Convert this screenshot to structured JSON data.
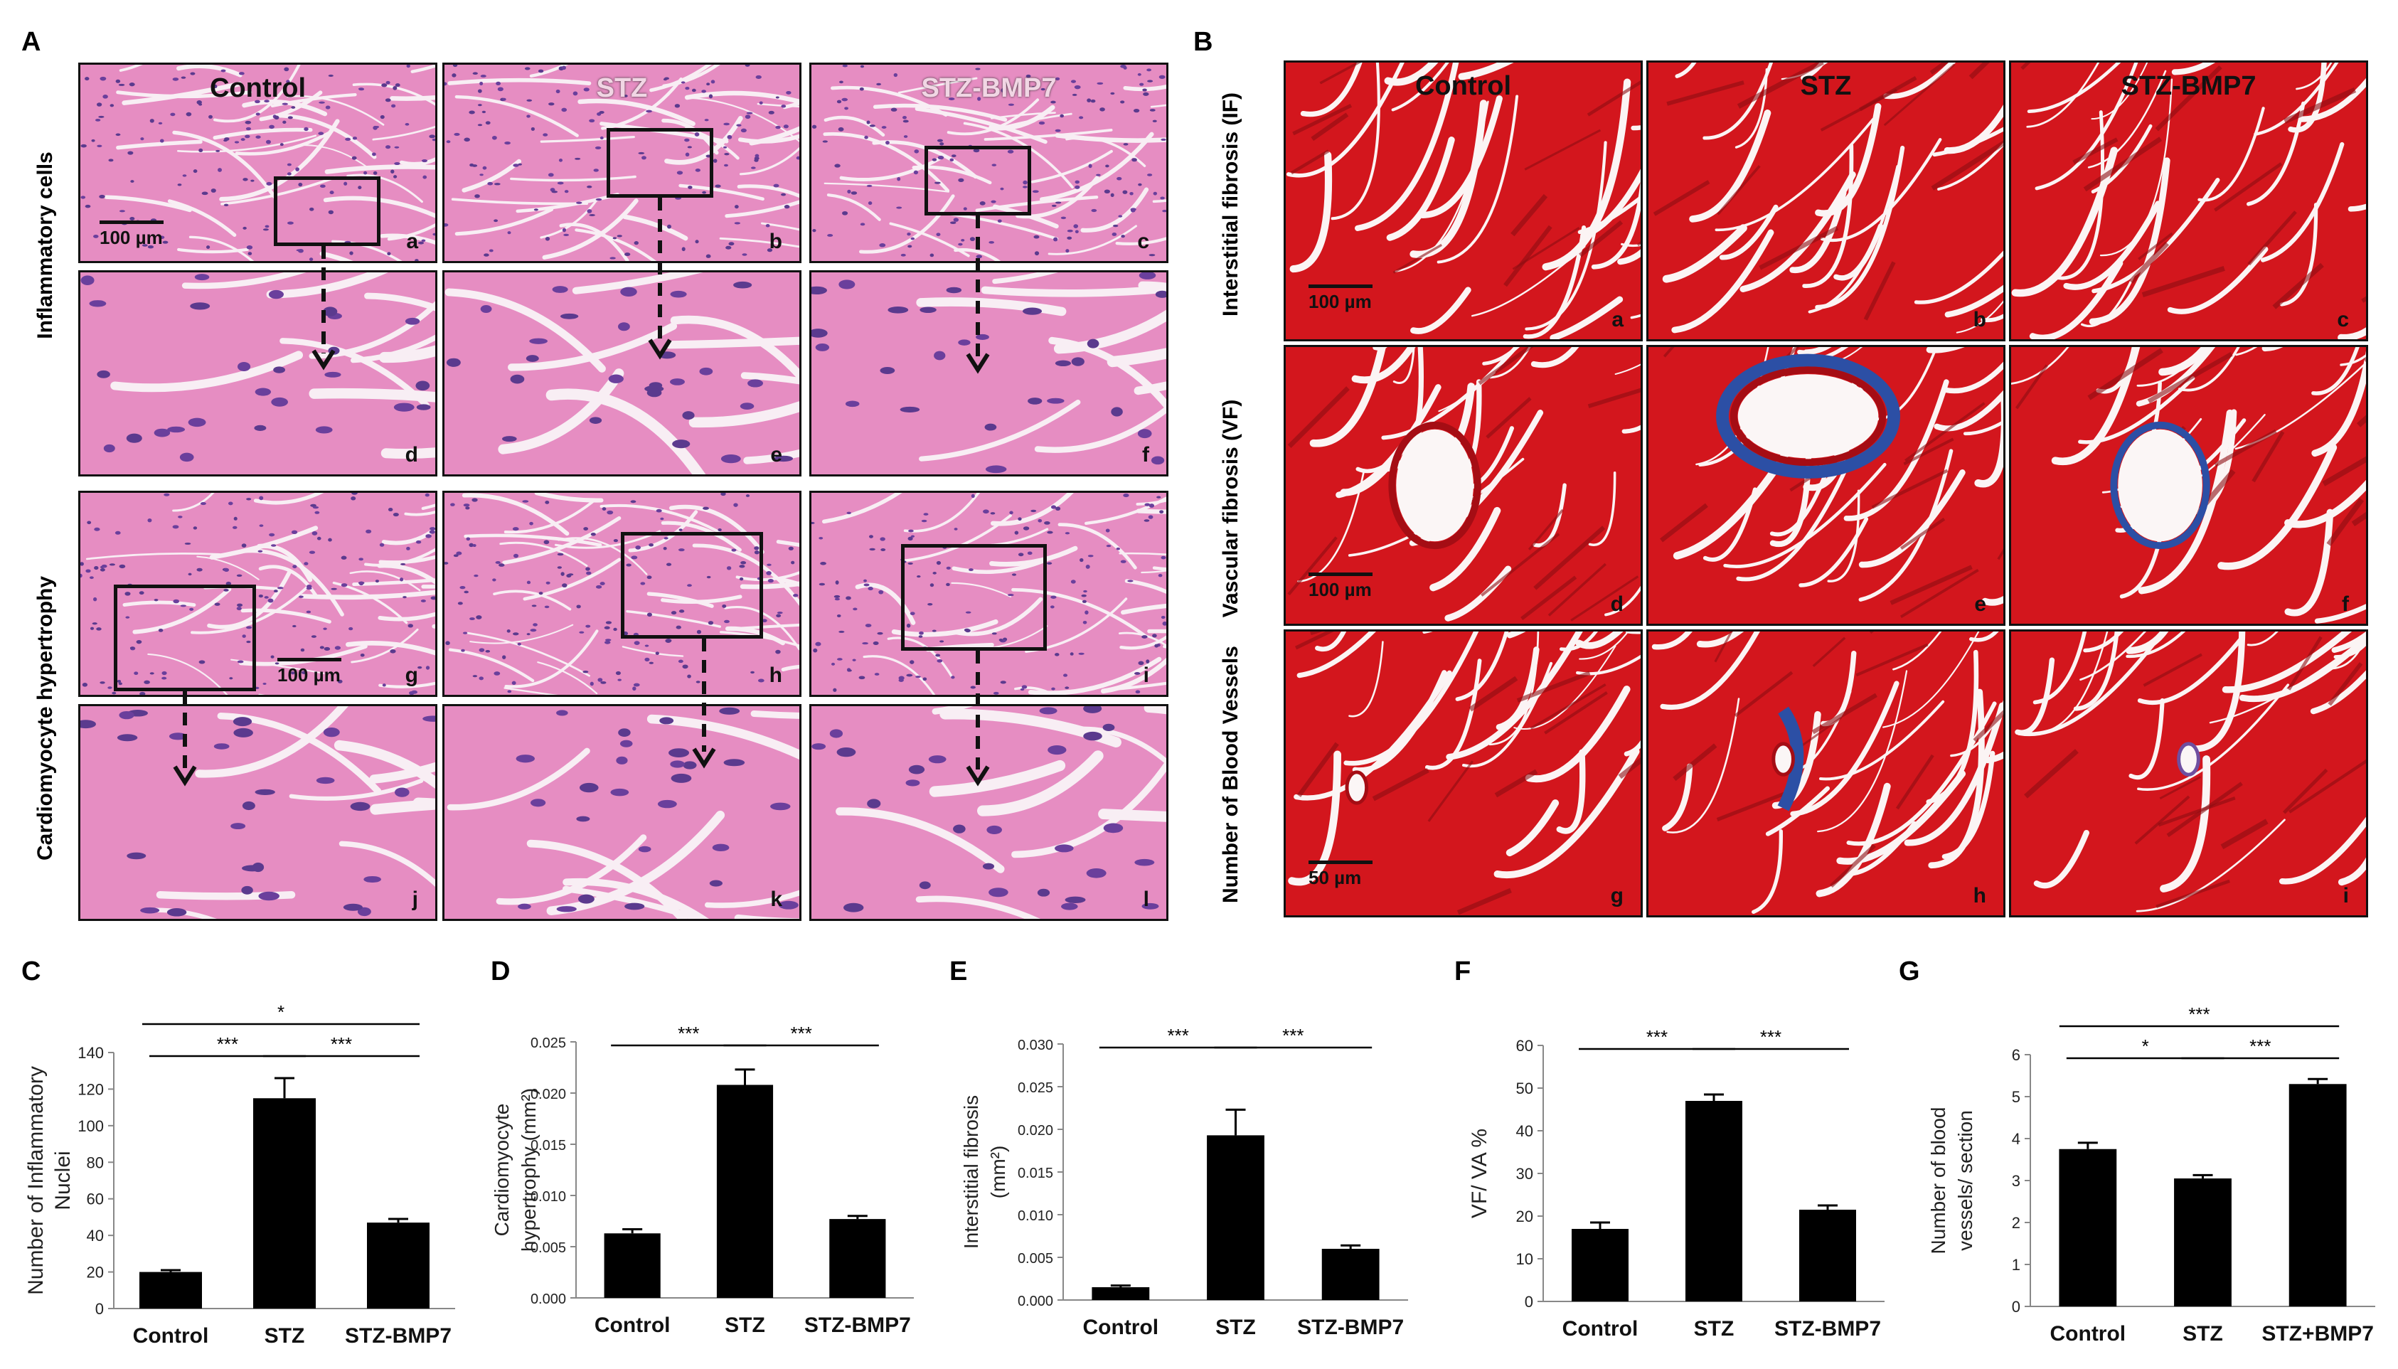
{
  "figure": {
    "panel_letters": [
      "A",
      "B",
      "C",
      "D",
      "E",
      "F",
      "G"
    ],
    "panelA": {
      "row_labels": [
        "Inflammatory cells",
        "Cardiomyocyte hypertrophy"
      ],
      "column_titles": [
        "Control",
        "STZ",
        "STZ-BMP7"
      ],
      "tile_letters": [
        "a",
        "b",
        "c",
        "d",
        "e",
        "f",
        "g",
        "h",
        "i",
        "j",
        "k",
        "l"
      ],
      "scale_bars": [
        "100 µm",
        "100 µm"
      ]
    },
    "panelB": {
      "row_labels": [
        "Interstitial fibrosis (IF)",
        "Vascular fibrosis (VF)",
        "Number of Blood Vessels"
      ],
      "column_titles": [
        "Control",
        "STZ",
        "STZ-BMP7"
      ],
      "tile_letters": [
        "a",
        "b",
        "c",
        "d",
        "e",
        "f",
        "g",
        "h",
        "i"
      ],
      "scale_bars": [
        "100 µm",
        "100 µm",
        "50 µm"
      ]
    },
    "colors": {
      "he_stain": "#e58bc0",
      "trichrome": "#d1161c",
      "collagen": "#2c4fa5",
      "bars": "#000000"
    }
  },
  "chart_data": [
    {
      "panel": "C",
      "type": "bar",
      "categories": [
        "Control",
        "STZ",
        "STZ-BMP7"
      ],
      "values": [
        20,
        115,
        47
      ],
      "errors": [
        1,
        11,
        2
      ],
      "ylabel": "Number of Inflammatory Nuclei",
      "ylim": [
        0,
        140
      ],
      "yticks": [
        "0",
        "20",
        "40",
        "60",
        "80",
        "100",
        "120",
        "140"
      ],
      "significance": [
        {
          "from": 0,
          "to": 1,
          "label": "***"
        },
        {
          "from": 1,
          "to": 2,
          "label": "***"
        },
        {
          "from": 0,
          "to": 2,
          "label": "*"
        }
      ]
    },
    {
      "panel": "D",
      "type": "bar",
      "categories": [
        "Control",
        "STZ",
        "STZ-BMP7"
      ],
      "values": [
        0.0063,
        0.0208,
        0.0077
      ],
      "errors": [
        0.0004,
        0.0015,
        0.0003
      ],
      "ylabel": "Cardiomyocyte hypertrophy (mm²)",
      "ylim": [
        0,
        0.025
      ],
      "yticks": [
        "0.000",
        "0.005",
        "0.010",
        "0.015",
        "0.020",
        "0.025"
      ],
      "significance": [
        {
          "from": 0,
          "to": 1,
          "label": "***"
        },
        {
          "from": 1,
          "to": 2,
          "label": "***"
        }
      ]
    },
    {
      "panel": "E",
      "type": "bar",
      "categories": [
        "Control",
        "STZ",
        "STZ-BMP7"
      ],
      "values": [
        0.0015,
        0.0193,
        0.006
      ],
      "errors": [
        0.0002,
        0.003,
        0.0004
      ],
      "ylabel": "Interstitial fibrosis (mm²)",
      "ylim": [
        0,
        0.03
      ],
      "yticks": [
        "0.000",
        "0.005",
        "0.010",
        "0.015",
        "0.020",
        "0.025",
        "0.030"
      ],
      "significance": [
        {
          "from": 0,
          "to": 1,
          "label": "***"
        },
        {
          "from": 1,
          "to": 2,
          "label": "***"
        }
      ]
    },
    {
      "panel": "F",
      "type": "bar",
      "categories": [
        "Control",
        "STZ",
        "STZ-BMP7"
      ],
      "values": [
        17,
        47,
        21.5
      ],
      "errors": [
        1.5,
        1.5,
        1
      ],
      "ylabel": "VF/ VA %",
      "ylim": [
        0,
        60
      ],
      "yticks": [
        "0",
        "10",
        "20",
        "30",
        "40",
        "50",
        "60"
      ],
      "significance": [
        {
          "from": 0,
          "to": 1,
          "label": "***"
        },
        {
          "from": 1,
          "to": 2,
          "label": "***"
        }
      ]
    },
    {
      "panel": "G",
      "type": "bar",
      "categories": [
        "Control",
        "STZ",
        "STZ+BMP7"
      ],
      "values": [
        3.75,
        3.05,
        5.3
      ],
      "errors": [
        0.15,
        0.08,
        0.12
      ],
      "ylabel": "Number of blood vessels/ section",
      "ylim": [
        0,
        6
      ],
      "yticks": [
        "0",
        "1",
        "2",
        "3",
        "4",
        "5",
        "6"
      ],
      "significance": [
        {
          "from": 0,
          "to": 1,
          "label": "*"
        },
        {
          "from": 1,
          "to": 2,
          "label": "***"
        },
        {
          "from": 0,
          "to": 2,
          "label": "***"
        }
      ]
    }
  ]
}
